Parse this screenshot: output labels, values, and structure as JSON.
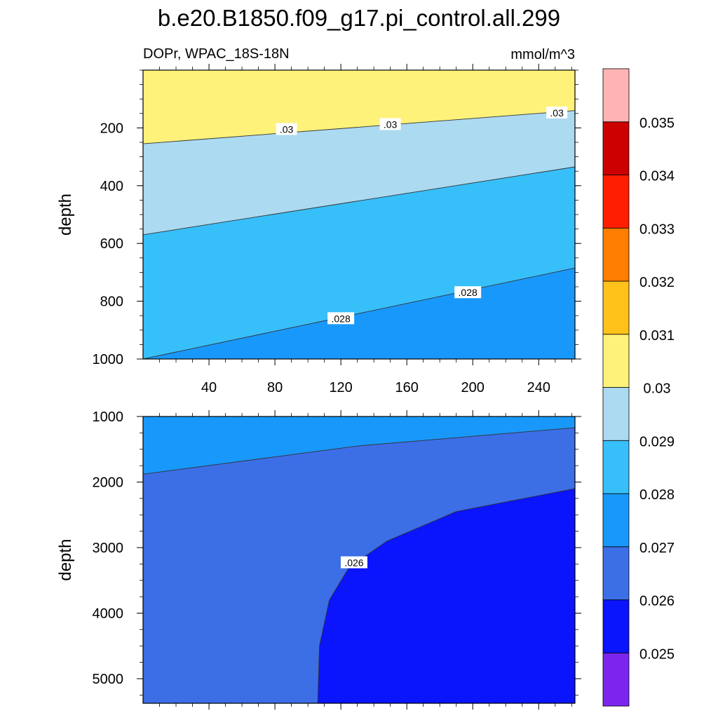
{
  "title": "b.e20.B1850.f09_g17.pi_control.all.299",
  "chart_data": {
    "type": "contour",
    "variable_label": "DOPr, WPAC_18S-18N",
    "units_label": "mmol/m^3",
    "x_axis": {
      "range": [
        0,
        262
      ],
      "tick_labels": [
        "40",
        "80",
        "120",
        "160",
        "200",
        "240"
      ],
      "ticks": [
        40,
        80,
        120,
        160,
        200,
        240
      ]
    },
    "colorbar": {
      "levels": [
        "0.025",
        "0.026",
        "0.027",
        "0.028",
        "0.029",
        "0.03",
        "0.031",
        "0.032",
        "0.033",
        "0.034",
        "0.035"
      ],
      "colors": [
        "#7b25ee",
        "#0a14fd",
        "#3c6ee6",
        "#1998fc",
        "#37bff9",
        "#acdaf1",
        "#fff27a",
        "#ffc21a",
        "#ff7d00",
        "#ff1e00",
        "#cc0000",
        "#ffb3b3"
      ]
    },
    "panels": [
      {
        "name": "upper",
        "ylabel": "depth",
        "y_range": [
          0,
          1000
        ],
        "y_ticks": [
          200,
          400,
          600,
          800,
          1000
        ],
        "y_tick_labels": [
          "200",
          "400",
          "600",
          "800",
          "1000"
        ],
        "contours": [
          {
            "level": "0.03",
            "x": [
              0,
              262
            ],
            "y": [
              255,
              140
            ]
          },
          {
            "level": "0.029",
            "x": [
              0,
              262
            ],
            "y": [
              570,
              335
            ]
          },
          {
            "level": "0.028",
            "x": [
              0,
              262
            ],
            "y": [
              1000,
              685
            ]
          }
        ],
        "contour_labels": [
          {
            "text": ".03",
            "x": 87,
            "y": 205
          },
          {
            "text": ".03",
            "x": 150,
            "y": 188
          },
          {
            "text": ".03",
            "x": 251,
            "y": 148
          },
          {
            "text": ".028",
            "x": 120,
            "y": 860
          },
          {
            "text": ".028",
            "x": 197,
            "y": 770
          }
        ]
      },
      {
        "name": "lower",
        "ylabel": "depth",
        "y_range": [
          1000,
          5375
        ],
        "y_ticks": [
          1000,
          2000,
          3000,
          4000,
          5000
        ],
        "y_tick_labels": [
          "1000",
          "2000",
          "3000",
          "4000",
          "5000"
        ],
        "contours": [
          {
            "level": "0.027",
            "x": [
              0,
              130,
              262
            ],
            "y": [
              1880,
              1450,
              1170
            ]
          },
          {
            "level": "0.026",
            "x": [
              106,
              107,
              113,
              125,
              148,
              190,
              262
            ],
            "y": [
              5375,
              4500,
              3800,
              3300,
              2900,
              2450,
              2100
            ]
          }
        ],
        "contour_labels": [
          {
            "text": ".026",
            "x": 128,
            "y": 3230
          }
        ]
      }
    ]
  }
}
